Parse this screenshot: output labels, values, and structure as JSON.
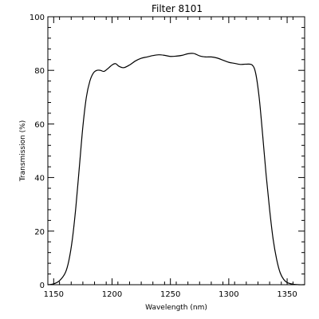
{
  "chart_data": {
    "type": "line",
    "title": "Filter 8101",
    "xlabel": "Wavelength (nm)",
    "ylabel": "Transmission (%)",
    "xlim": [
      1145,
      1365
    ],
    "ylim": [
      0,
      100
    ],
    "xticks": [
      1150,
      1200,
      1250,
      1300,
      1350
    ],
    "yticks": [
      0,
      20,
      40,
      60,
      80,
      100
    ],
    "grid": false,
    "color": "#000000",
    "series": [
      {
        "x": [
          1145,
          1150,
          1155,
          1160,
          1163,
          1166,
          1169,
          1172,
          1175,
          1178,
          1181,
          1184,
          1187,
          1190,
          1193,
          1196,
          1200,
          1203,
          1206,
          1210,
          1215,
          1220,
          1225,
          1230,
          1235,
          1240,
          1245,
          1250,
          1255,
          1260,
          1265,
          1270,
          1275,
          1280,
          1285,
          1290,
          1295,
          1300,
          1305,
          1310,
          1315,
          1320,
          1323,
          1326,
          1329,
          1332,
          1335,
          1338,
          1341,
          1344,
          1347,
          1350,
          1355,
          1360,
          1365
        ],
        "y": [
          0,
          0.3,
          1.5,
          4.5,
          9,
          17,
          29,
          44,
          59,
          70,
          76,
          79,
          80,
          80,
          79.6,
          80.5,
          82,
          82.5,
          81.5,
          81,
          82,
          83.5,
          84.5,
          85,
          85.5,
          85.8,
          85.6,
          85.2,
          85.3,
          85.6,
          86.2,
          86.3,
          85.4,
          85,
          85,
          84.6,
          83.8,
          83,
          82.6,
          82.2,
          82.3,
          82,
          79,
          70,
          56,
          41,
          28,
          17,
          9.5,
          4.5,
          2,
          0.8,
          0.2,
          0,
          0
        ]
      }
    ]
  }
}
